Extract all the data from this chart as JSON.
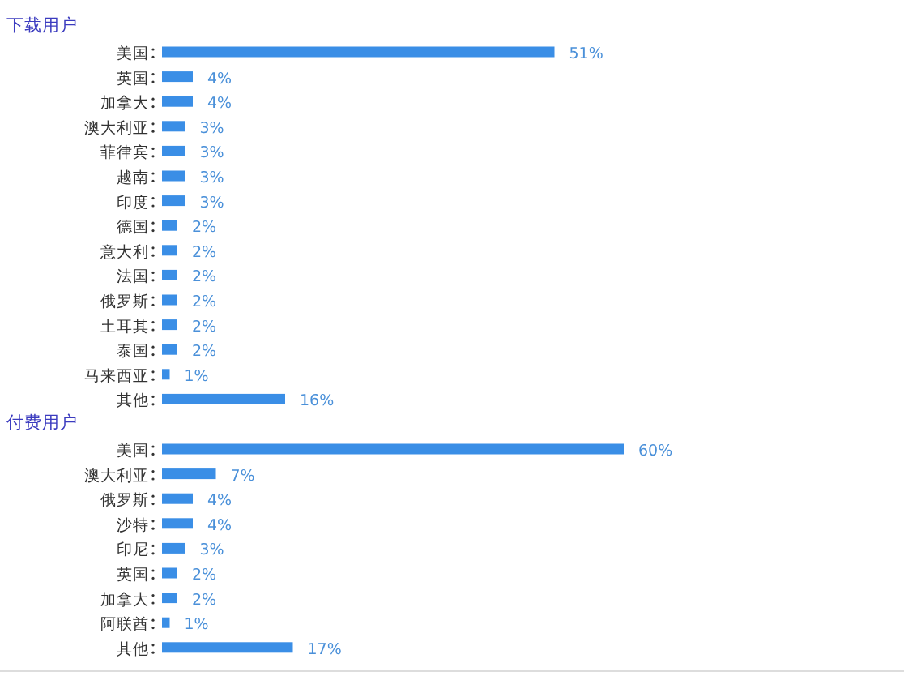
{
  "chart_data": [
    {
      "type": "bar",
      "orientation": "horizontal",
      "title": "下载用户",
      "color": "#3a8ee6",
      "categories": [
        "美国",
        "英国",
        "加拿大",
        "澳大利亚",
        "菲律宾",
        "越南",
        "印度",
        "德国",
        "意大利",
        "法国",
        "俄罗斯",
        "土耳其",
        "泰国",
        "马来西亚",
        "其他"
      ],
      "values": [
        51,
        4,
        4,
        3,
        3,
        3,
        3,
        2,
        2,
        2,
        2,
        2,
        2,
        1,
        16
      ],
      "value_labels": [
        "51%",
        "4%",
        "4%",
        "3%",
        "3%",
        "3%",
        "3%",
        "2%",
        "2%",
        "2%",
        "2%",
        "2%",
        "2%",
        "1%",
        "16%"
      ]
    },
    {
      "type": "bar",
      "orientation": "horizontal",
      "title": "付费用户",
      "color": "#3a8ee6",
      "categories": [
        "美国",
        "澳大利亚",
        "俄罗斯",
        "沙特",
        "印尼",
        "英国",
        "加拿大",
        "阿联酋",
        "其他"
      ],
      "values": [
        60,
        7,
        4,
        4,
        3,
        2,
        2,
        1,
        17
      ],
      "value_labels": [
        "60%",
        "7%",
        "4%",
        "4%",
        "3%",
        "2%",
        "2%",
        "1%",
        "17%"
      ]
    }
  ]
}
